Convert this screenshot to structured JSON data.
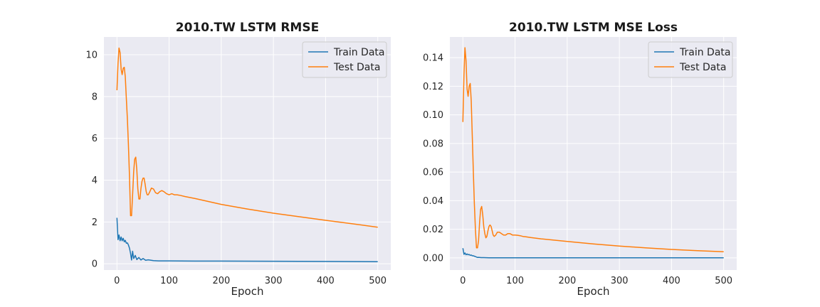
{
  "colors": {
    "train": "#1f77b4",
    "test": "#ff7f0e",
    "background": "#eaeaf2",
    "grid": "#ffffff"
  },
  "chart_data": [
    {
      "type": "line",
      "title": "2010.TW  LSTM RMSE",
      "xlabel": "Epoch",
      "ylabel": "",
      "xlim": [
        -25,
        525
      ],
      "ylim": [
        -0.3,
        10.85
      ],
      "xticks": [
        0,
        100,
        200,
        300,
        400,
        500
      ],
      "yticks": [
        0,
        2,
        4,
        6,
        8,
        10
      ],
      "grid": true,
      "legend": "top-right",
      "series": [
        {
          "name": "Train Data",
          "color": "#1f77b4",
          "x": [
            0,
            2,
            4,
            6,
            8,
            10,
            12,
            14,
            16,
            18,
            20,
            22,
            24,
            26,
            28,
            30,
            32,
            35,
            38,
            42,
            46,
            50,
            55,
            60,
            70,
            80,
            100,
            150,
            200,
            300,
            400,
            500
          ],
          "y": [
            2.2,
            1.15,
            1.38,
            1.1,
            1.28,
            1.1,
            1.22,
            1.05,
            1.12,
            0.98,
            1.0,
            0.9,
            0.75,
            0.5,
            0.18,
            0.6,
            0.25,
            0.4,
            0.2,
            0.3,
            0.18,
            0.25,
            0.17,
            0.19,
            0.15,
            0.14,
            0.14,
            0.13,
            0.13,
            0.12,
            0.11,
            0.1
          ]
        },
        {
          "name": "Test Data",
          "color": "#ff7f0e",
          "x": [
            0,
            2,
            4,
            6,
            8,
            10,
            12,
            14,
            16,
            18,
            20,
            22,
            24,
            26,
            28,
            30,
            32,
            34,
            36,
            38,
            40,
            42,
            44,
            46,
            48,
            50,
            52,
            54,
            56,
            58,
            60,
            63,
            66,
            70,
            74,
            78,
            82,
            86,
            90,
            95,
            100,
            105,
            110,
            115,
            120,
            130,
            150,
            200,
            250,
            300,
            350,
            400,
            450,
            500
          ],
          "y": [
            8.3,
            9.6,
            10.32,
            10.1,
            9.3,
            9.05,
            9.35,
            9.4,
            8.95,
            7.9,
            6.9,
            5.7,
            4.2,
            2.3,
            2.3,
            3.3,
            4.4,
            5.0,
            5.1,
            4.5,
            3.6,
            3.1,
            3.1,
            3.6,
            3.95,
            4.1,
            4.1,
            3.8,
            3.45,
            3.3,
            3.3,
            3.45,
            3.62,
            3.58,
            3.4,
            3.35,
            3.45,
            3.5,
            3.45,
            3.35,
            3.3,
            3.35,
            3.3,
            3.3,
            3.28,
            3.22,
            3.12,
            2.84,
            2.62,
            2.42,
            2.25,
            2.08,
            1.92,
            1.75
          ]
        }
      ]
    },
    {
      "type": "line",
      "title": "2010.TW  LSTM MSE Loss",
      "xlabel": "Epoch",
      "ylabel": "",
      "xlim": [
        -25,
        525
      ],
      "ylim": [
        -0.0085,
        0.1545
      ],
      "xticks": [
        0,
        100,
        200,
        300,
        400,
        500
      ],
      "yticks": [
        0.0,
        0.02,
        0.04,
        0.06,
        0.08,
        0.1,
        0.12,
        0.14
      ],
      "ytick_labels": [
        "0.00",
        "0.02",
        "0.04",
        "0.06",
        "0.08",
        "0.10",
        "0.12",
        "0.14"
      ],
      "grid": true,
      "legend": "top-right",
      "series": [
        {
          "name": "Train Data",
          "color": "#1f77b4",
          "x": [
            0,
            2,
            4,
            6,
            8,
            10,
            12,
            14,
            16,
            18,
            20,
            22,
            24,
            26,
            28,
            30,
            35,
            40,
            50,
            60,
            80,
            100,
            200,
            300,
            400,
            500
          ],
          "y": [
            0.0068,
            0.0025,
            0.0035,
            0.0022,
            0.0028,
            0.0022,
            0.0024,
            0.0018,
            0.002,
            0.0015,
            0.0015,
            0.0012,
            0.0009,
            0.0006,
            0.0003,
            0.0004,
            0.0002,
            0.0002,
            0.0001,
            0.0001,
            0.0001,
            0.0001,
            0.0001,
            0.0001,
            0.0001,
            0.0001
          ]
        },
        {
          "name": "Test Data",
          "color": "#ff7f0e",
          "x": [
            0,
            2,
            4,
            6,
            8,
            10,
            12,
            14,
            16,
            18,
            20,
            22,
            24,
            26,
            28,
            30,
            32,
            34,
            36,
            38,
            40,
            42,
            44,
            46,
            48,
            50,
            52,
            54,
            56,
            58,
            60,
            63,
            66,
            70,
            74,
            78,
            82,
            86,
            90,
            95,
            100,
            105,
            110,
            115,
            120,
            130,
            150,
            200,
            250,
            300,
            350,
            400,
            450,
            500
          ],
          "y": [
            0.095,
            0.128,
            0.147,
            0.138,
            0.118,
            0.113,
            0.12,
            0.122,
            0.11,
            0.085,
            0.06,
            0.038,
            0.02,
            0.007,
            0.007,
            0.012,
            0.025,
            0.034,
            0.036,
            0.03,
            0.022,
            0.017,
            0.014,
            0.015,
            0.019,
            0.022,
            0.023,
            0.022,
            0.019,
            0.016,
            0.015,
            0.016,
            0.018,
            0.018,
            0.017,
            0.016,
            0.016,
            0.017,
            0.017,
            0.016,
            0.016,
            0.0158,
            0.0155,
            0.015,
            0.0148,
            0.0142,
            0.0133,
            0.0115,
            0.0098,
            0.0083,
            0.007,
            0.0059,
            0.005,
            0.0043
          ]
        }
      ]
    }
  ]
}
